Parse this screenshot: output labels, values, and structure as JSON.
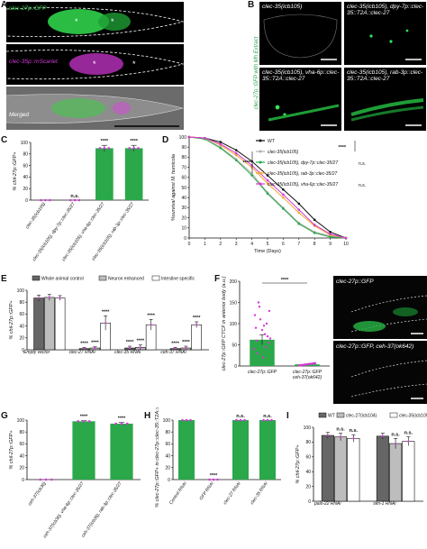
{
  "panels": {
    "A": {
      "label": "A",
      "images": [
        {
          "label": "clec-27p::GFP",
          "color": "#39d353"
        },
        {
          "label": "clec-35p::mScarlet",
          "color": "#d43ad6"
        },
        {
          "label": "Merged",
          "color": "#ffffff"
        }
      ]
    },
    "B": {
      "label": "B",
      "side_label": "clec-27p::GFP with Mh Extract",
      "images": [
        {
          "label": "clec-35(icb105)"
        },
        {
          "label": "clec-35(icb105), dpy-7p::clec-35::T2A::clec-27"
        },
        {
          "label": "clec-35(icb105), vha-6p::clec-35::T2A::clec-27"
        },
        {
          "label": "clec-35(icb105), rab-3p::clec-35::T2A::clec-27"
        }
      ]
    },
    "C": {
      "label": "C"
    },
    "D": {
      "label": "D"
    },
    "E": {
      "label": "E"
    },
    "F": {
      "label": "F",
      "images": [
        {
          "label": "clec-27p::GFP"
        },
        {
          "label": "clec-27p::GFP, ceh-37(ok642)"
        }
      ]
    },
    "G": {
      "label": "G"
    },
    "H": {
      "label": "H"
    },
    "I": {
      "label": "I"
    }
  },
  "chart_data": [
    {
      "panel": "C",
      "type": "bar",
      "categories": [
        "clec-35(icb105)",
        "clec-35(icb105); dpy-7p::clec-35/27",
        "clec-35(icb105); vha-6p::clec-35/27",
        "clec-35(icb105); rab-3p::clec-35/27"
      ],
      "values": [
        0,
        0,
        90,
        90
      ],
      "errors": [
        0,
        0,
        5,
        5
      ],
      "significance": [
        "",
        "n.s.",
        "****",
        "****"
      ],
      "ylabel": "% chil-27p::GFP+",
      "ylim": [
        0,
        100
      ],
      "yticks": [
        0,
        20,
        40,
        60,
        80,
        100
      ],
      "bar_color": "#2aa84a"
    },
    {
      "panel": "D",
      "type": "line",
      "x": [
        0,
        1,
        2,
        3,
        4,
        5,
        6,
        7,
        8,
        9,
        10
      ],
      "series": [
        {
          "name": "WT",
          "color": "#111111",
          "values": [
            100,
            99,
            95,
            87,
            76,
            62,
            48,
            34,
            18,
            6,
            0
          ]
        },
        {
          "name": "clec-35(icb105)",
          "color": "#b0b0b0",
          "values": [
            100,
            98,
            90,
            78,
            64,
            45,
            30,
            15,
            6,
            2,
            0
          ]
        },
        {
          "name": "clec-35(icb105), dpy-7p::clec-35/27",
          "color": "#2aa84a",
          "values": [
            100,
            98,
            89,
            77,
            62,
            44,
            29,
            14,
            5,
            1,
            0
          ]
        },
        {
          "name": "clec-35(icb105), rab-3p::clec-35/27",
          "color": "#f2a72e",
          "values": [
            100,
            99,
            92,
            82,
            70,
            54,
            40,
            25,
            12,
            3,
            0
          ]
        },
        {
          "name": "clec-35(icb105), vha-6p::clec-35/27",
          "color": "#d43ad6",
          "values": [
            100,
            99,
            93,
            84,
            72,
            57,
            43,
            28,
            13,
            4,
            0
          ]
        }
      ],
      "xlabel": "Time (Days)",
      "ylabel": "%survival against M. humicola",
      "xlim": [
        0,
        10
      ],
      "ylim": [
        0,
        100
      ],
      "xticks": [
        0,
        1,
        2,
        3,
        4,
        5,
        6,
        7,
        8,
        9,
        10
      ],
      "yticks": [
        0,
        10,
        20,
        30,
        40,
        50,
        60,
        70,
        80,
        90,
        100
      ],
      "annotations": [
        "****",
        "****",
        "n.s.",
        "n.s."
      ]
    },
    {
      "panel": "E",
      "type": "bar",
      "categories": [
        "Empty vector",
        "clec-27 RNAi",
        "clec-35 RNAi",
        "ceh-37 RNAi"
      ],
      "series": [
        {
          "name": "Whole animal control",
          "color": "#666666",
          "values": [
            87,
            2,
            3,
            2
          ],
          "errors": [
            5,
            2,
            3,
            2
          ]
        },
        {
          "name": "Neuron enhanced",
          "color": "#bdbdbd",
          "values": [
            88,
            3,
            4,
            3
          ],
          "errors": [
            5,
            2,
            4,
            3
          ]
        },
        {
          "name": "Intestine specific",
          "color": "#ffffff",
          "values": [
            87,
            45,
            42,
            42
          ],
          "errors": [
            4,
            12,
            9,
            5
          ]
        }
      ],
      "significance": [
        "",
        "**** **** ****",
        "**** **** ****",
        "**** **** ****"
      ],
      "ylabel": "% chil-27p::GFP+",
      "ylim": [
        0,
        100
      ],
      "yticks": [
        0,
        20,
        40,
        60,
        80,
        100
      ]
    },
    {
      "panel": "F",
      "type": "bar",
      "categories": [
        "clec-27p::GFP",
        "clec-27p::GFP; ceh-37(ok642)"
      ],
      "values": [
        62,
        4
      ],
      "errors": [
        12,
        1
      ],
      "significance": "****",
      "ylabel": "clec-27p::GFP CTCF in anterior body (a.u.)",
      "ylim": [
        0,
        200
      ],
      "yticks": [
        0,
        50,
        100,
        150,
        200
      ],
      "bar_color": "#2aa84a",
      "point_color": "#d43ad6"
    },
    {
      "panel": "G",
      "type": "bar",
      "categories": [
        "ceh-37(icb36)",
        "ceh-37(icb36), vha-6p::clec-35/27",
        "ceh-37(icb36), rab-3p::clec-35/27"
      ],
      "values": [
        0,
        98,
        94
      ],
      "errors": [
        0,
        1,
        2
      ],
      "significance": [
        "",
        "****",
        "****"
      ],
      "ylabel": "% chil-27p::GFP+",
      "ylim": [
        0,
        100
      ],
      "yticks": [
        0,
        20,
        40,
        60,
        80,
        100
      ],
      "bar_color": "#2aa84a"
    },
    {
      "panel": "H",
      "type": "bar",
      "categories": [
        "Control RNAi",
        "GFP RNAi",
        "clec-27 RNAi",
        "clec-35 RNAi"
      ],
      "values": [
        100,
        0,
        100,
        100
      ],
      "errors": [
        0,
        0,
        0,
        0
      ],
      "significance": [
        "",
        "****",
        "n.s.",
        "n.s."
      ],
      "ylabel": "% clec-27p::GFP+ in clec-27p::clec-35::T2A::clec-27",
      "ylim": [
        0,
        100
      ],
      "yticks": [
        0,
        20,
        40,
        60,
        80,
        100
      ],
      "bar_color": "#2aa84a"
    },
    {
      "panel": "I",
      "type": "bar",
      "categories": [
        "pals-22 RNAi",
        "skn-1 RNAi"
      ],
      "series": [
        {
          "name": "WT",
          "color": "#666666",
          "values": [
            89,
            88
          ],
          "errors": [
            4,
            4
          ]
        },
        {
          "name": "clec-27(icb104)",
          "color": "#bdbdbd",
          "values": [
            87,
            78
          ],
          "errors": [
            5,
            7
          ]
        },
        {
          "name": "clec-35(icb105)",
          "color": "#ffffff",
          "values": [
            85,
            81
          ],
          "errors": [
            5,
            6
          ]
        }
      ],
      "significance": [
        "n.s. n.s.",
        "n.s. n.s."
      ],
      "ylabel": "% chil-27p::GFP+",
      "ylim": [
        0,
        100
      ],
      "yticks": [
        0,
        20,
        40,
        60,
        80,
        100
      ]
    }
  ]
}
